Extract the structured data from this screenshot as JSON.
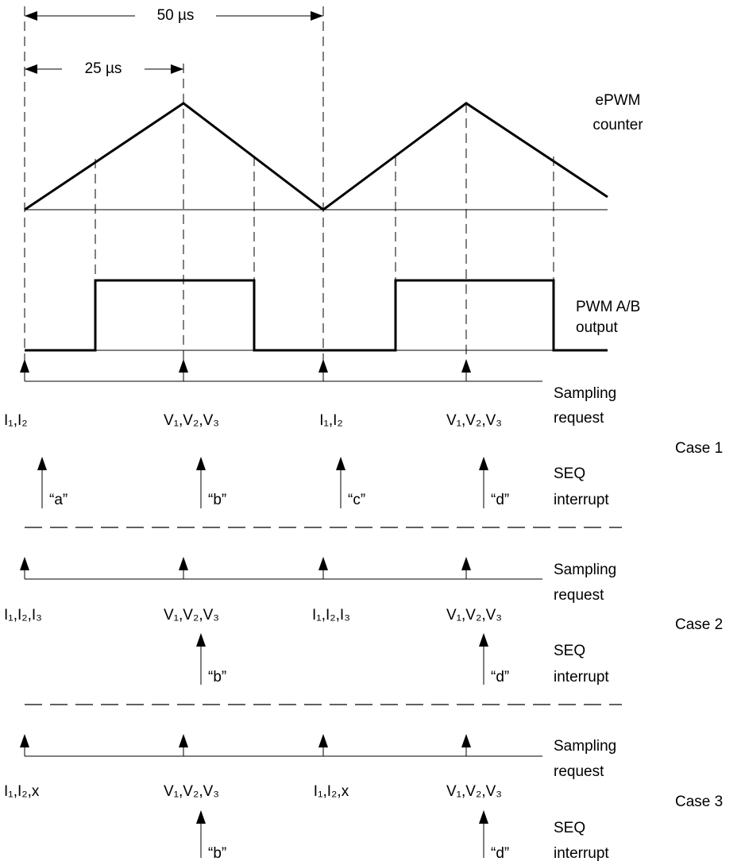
{
  "intervals": {
    "long": "50 µs",
    "short": "25 µs"
  },
  "signals": {
    "counter": [
      "ePWM",
      "counter"
    ],
    "pwm_output": [
      "PWM A/B",
      "output"
    ]
  },
  "cases": [
    {
      "label": "Case 1",
      "sampling": {
        "label": [
          "Sampling",
          "request"
        ],
        "points": [
          "I₁,I₂",
          "V₁,V₂,V₃",
          "I₁,I₂",
          "V₁,V₂,V₃"
        ]
      },
      "interrupt": {
        "label": [
          "SEQ",
          "interrupt"
        ],
        "points": [
          "“a”",
          "“b”",
          "“c”",
          "“d”"
        ]
      }
    },
    {
      "label": "Case 2",
      "sampling": {
        "label": [
          "Sampling",
          "request"
        ],
        "points": [
          "I₁,I₂,I₃",
          "V₁,V₂,V₃",
          "I₁,I₂,I₃",
          "V₁,V₂,V₃"
        ]
      },
      "interrupt": {
        "label": [
          "SEQ",
          "interrupt"
        ],
        "points": [
          "“b”",
          "“d”"
        ]
      }
    },
    {
      "label": "Case 3",
      "sampling": {
        "label": [
          "Sampling",
          "request"
        ],
        "points": [
          "I₁,I₂,x",
          "V₁,V₂,V₃",
          "I₁,I₂,x",
          "V₁,V₂,V₃"
        ]
      },
      "interrupt": {
        "label": [
          "SEQ",
          "interrupt"
        ],
        "points": [
          "“b”",
          "“d”"
        ]
      }
    }
  ]
}
